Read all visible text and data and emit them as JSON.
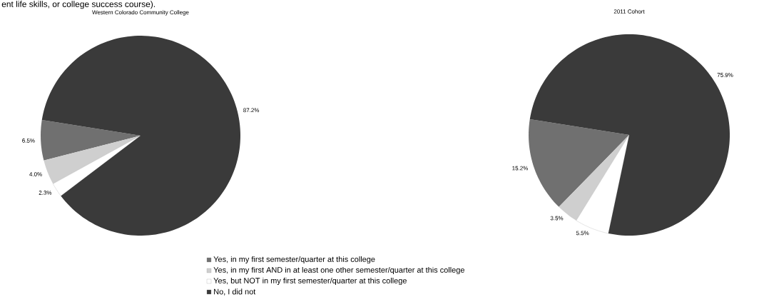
{
  "chart_data": [
    {
      "type": "pie",
      "title": "Western Colorado Community College",
      "categories": [
        "Yes, in my first semester/quarter at this college",
        "Yes, in my first AND in at least one other semester/quarter at this college",
        "Yes, but NOT in my first semester/quarter at this college",
        "No, I did not"
      ],
      "values": [
        6.5,
        4.0,
        2.3,
        87.2
      ],
      "value_labels": [
        "6.5%",
        "4.0%",
        "2.3%",
        "87.2%"
      ],
      "colors": [
        "#707070",
        "#cfcfcf",
        "#ffffff",
        "#3a3a3a"
      ],
      "legend": "bottom",
      "annotations": [
        "ent life skills, or college success course)."
      ]
    },
    {
      "type": "pie",
      "title": "2011 Cohort",
      "categories": [
        null,
        null,
        null,
        null
      ],
      "values": [
        15.2,
        3.5,
        5.5,
        75.9
      ],
      "value_labels": [
        "15.2%",
        "3.5%",
        "5.5%",
        "75.9%"
      ],
      "colors": [
        "#707070",
        "#cfcfcf",
        "#ffffff",
        "#3a3a3a"
      ]
    }
  ]
}
